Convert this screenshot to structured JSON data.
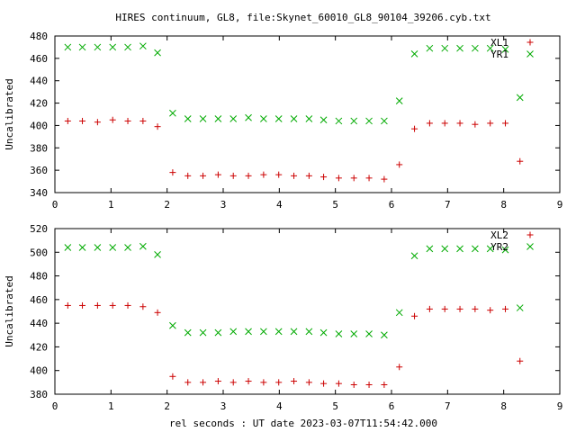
{
  "title": "HIRES continuum, GL8, file:Skynet_60010_GL8_90104_39206.cyb.txt",
  "xlabel": "rel seconds : UT date 2023-03-07T11:54:42.000",
  "colors": {
    "series1": "#cc0000",
    "series2": "#00aa00"
  },
  "chart_data": [
    {
      "type": "scatter",
      "ylabel": "Uncalibrated",
      "xlim": [
        0,
        9
      ],
      "ylim": [
        340,
        480
      ],
      "x_ticks": [
        0,
        1,
        2,
        3,
        4,
        5,
        6,
        7,
        8,
        9
      ],
      "y_ticks": [
        340,
        360,
        380,
        400,
        420,
        440,
        460,
        480
      ],
      "grid": false,
      "legend_position": "top-right",
      "series": [
        {
          "name": "XL1",
          "marker": "plus",
          "color": "#cc0000",
          "x": [
            0.23,
            0.49,
            0.76,
            1.03,
            1.3,
            1.57,
            1.83,
            2.1,
            2.37,
            2.64,
            2.91,
            3.18,
            3.45,
            3.72,
            3.99,
            4.26,
            4.53,
            4.79,
            5.06,
            5.33,
            5.6,
            5.87,
            6.14,
            6.41,
            6.68,
            6.95,
            7.22,
            7.49,
            7.76,
            8.03,
            8.29
          ],
          "y": [
            404,
            404,
            403,
            405,
            404,
            404,
            399,
            358,
            355,
            355,
            356,
            355,
            355,
            356,
            356,
            355,
            355,
            354,
            353,
            353,
            353,
            352,
            365,
            397,
            402,
            402,
            402,
            401,
            402,
            402,
            368
          ]
        },
        {
          "name": "YR1",
          "marker": "cross",
          "color": "#00aa00",
          "x": [
            0.23,
            0.49,
            0.76,
            1.03,
            1.3,
            1.57,
            1.83,
            2.1,
            2.37,
            2.64,
            2.91,
            3.18,
            3.45,
            3.72,
            3.99,
            4.26,
            4.53,
            4.79,
            5.06,
            5.33,
            5.6,
            5.87,
            6.14,
            6.41,
            6.68,
            6.95,
            7.22,
            7.49,
            7.76,
            8.03,
            8.29
          ],
          "y": [
            470,
            470,
            470,
            470,
            470,
            471,
            465,
            411,
            406,
            406,
            406,
            406,
            407,
            406,
            406,
            406,
            406,
            405,
            404,
            404,
            404,
            404,
            422,
            464,
            469,
            469,
            469,
            469,
            469,
            468,
            425
          ]
        }
      ]
    },
    {
      "type": "scatter",
      "ylabel": "Uncalibrated",
      "xlim": [
        0,
        9
      ],
      "ylim": [
        380,
        520
      ],
      "x_ticks": [
        0,
        1,
        2,
        3,
        4,
        5,
        6,
        7,
        8,
        9
      ],
      "y_ticks": [
        380,
        400,
        420,
        440,
        460,
        480,
        500,
        520
      ],
      "grid": false,
      "legend_position": "top-right",
      "series": [
        {
          "name": "XL2",
          "marker": "plus",
          "color": "#cc0000",
          "x": [
            0.23,
            0.49,
            0.76,
            1.03,
            1.3,
            1.57,
            1.83,
            2.1,
            2.37,
            2.64,
            2.91,
            3.18,
            3.45,
            3.72,
            3.99,
            4.26,
            4.53,
            4.79,
            5.06,
            5.33,
            5.6,
            5.87,
            6.14,
            6.41,
            6.68,
            6.95,
            7.22,
            7.49,
            7.76,
            8.03,
            8.29
          ],
          "y": [
            455,
            455,
            455,
            455,
            455,
            454,
            449,
            395,
            390,
            390,
            391,
            390,
            391,
            390,
            390,
            391,
            390,
            389,
            389,
            388,
            388,
            388,
            403,
            446,
            452,
            452,
            452,
            452,
            451,
            452,
            408
          ]
        },
        {
          "name": "YR2",
          "marker": "cross",
          "color": "#00aa00",
          "x": [
            0.23,
            0.49,
            0.76,
            1.03,
            1.3,
            1.57,
            1.83,
            2.1,
            2.37,
            2.64,
            2.91,
            3.18,
            3.45,
            3.72,
            3.99,
            4.26,
            4.53,
            4.79,
            5.06,
            5.33,
            5.6,
            5.87,
            6.14,
            6.41,
            6.68,
            6.95,
            7.22,
            7.49,
            7.76,
            8.03,
            8.29
          ],
          "y": [
            504,
            504,
            504,
            504,
            504,
            505,
            498,
            438,
            432,
            432,
            432,
            433,
            433,
            433,
            433,
            433,
            433,
            432,
            431,
            431,
            431,
            430,
            449,
            497,
            503,
            503,
            503,
            503,
            503,
            502,
            453
          ]
        }
      ]
    }
  ]
}
